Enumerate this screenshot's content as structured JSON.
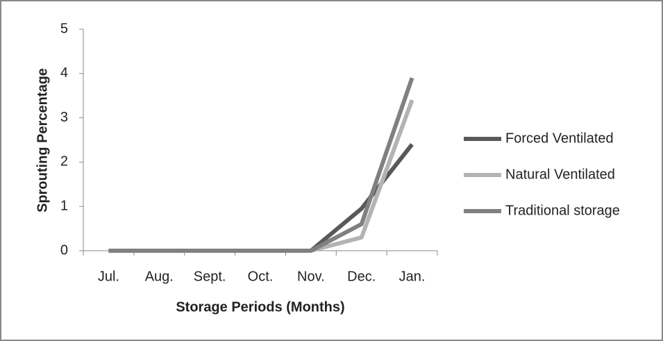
{
  "chart_data": {
    "type": "line",
    "xlabel": "Storage Periods (Months)",
    "ylabel": "Sprouting Percentage",
    "categories": [
      "Jul.",
      "Aug.",
      "Sept.",
      "Oct.",
      "Nov.",
      "Dec.",
      "Jan."
    ],
    "series": [
      {
        "name": "Forced Ventilated",
        "color": "#595959",
        "values": [
          0,
          0,
          0,
          0,
          0,
          0.95,
          2.4
        ]
      },
      {
        "name": "Natural Ventilated",
        "color": "#b3b3b3",
        "values": [
          0,
          0,
          0,
          0,
          0,
          0.3,
          3.4
        ]
      },
      {
        "name": "Traditional storage",
        "color": "#808080",
        "values": [
          0,
          0,
          0,
          0,
          0,
          0.6,
          3.9
        ]
      }
    ],
    "ylim": [
      0,
      5
    ],
    "yticks": [
      0,
      1,
      2,
      3,
      4,
      5
    ],
    "legend": "right"
  }
}
